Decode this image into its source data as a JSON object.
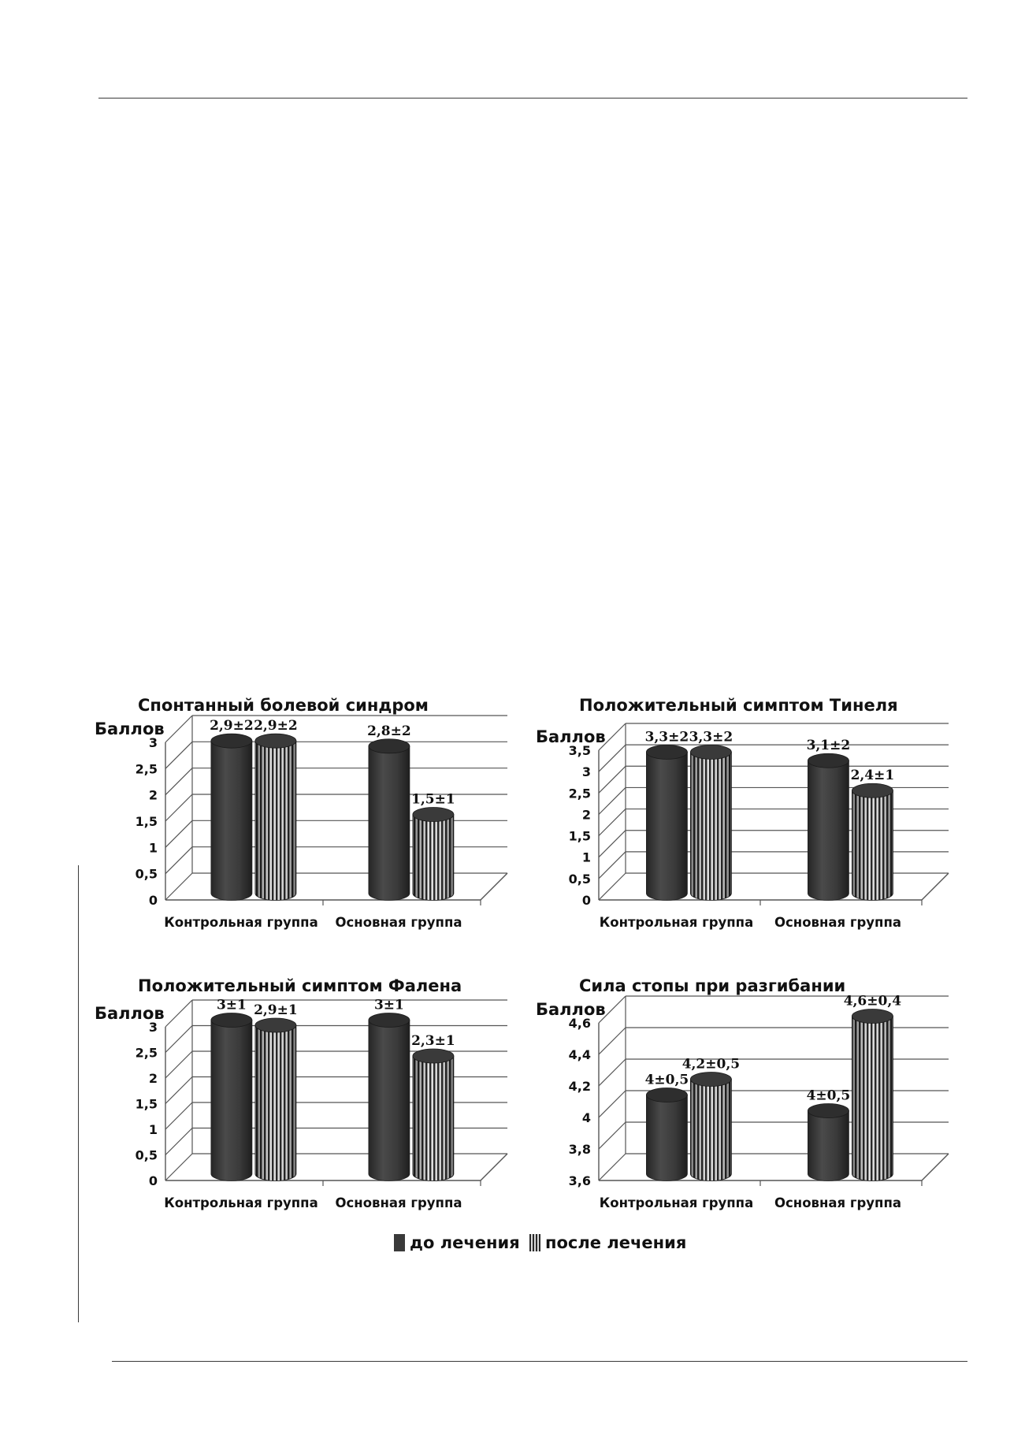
{
  "colors": {
    "before": "#3a3a3a",
    "after_dark": "#2a2a2a",
    "after_light": "#d9d9d9",
    "grid": "#555555"
  },
  "legend": {
    "before_label": "до лечения",
    "after_label": "после лечения"
  },
  "chart_data": [
    {
      "type": "bar",
      "title": "Спонтанный болевой синдром",
      "ylabel": "Баллов",
      "ylim": [
        0,
        3
      ],
      "yticks": [
        "0",
        "0,5",
        "1",
        "1,5",
        "2",
        "2,5",
        "3"
      ],
      "categories": [
        "Контрольная группа",
        "Основная группа"
      ],
      "series": [
        {
          "name": "до лечения",
          "values": [
            2.9,
            2.8
          ],
          "labels": [
            "2,9±2",
            "2,8±2"
          ]
        },
        {
          "name": "после лечения",
          "values": [
            2.9,
            1.5
          ],
          "labels": [
            "2,9±2",
            "1,5±1"
          ]
        }
      ]
    },
    {
      "type": "bar",
      "title": "Положительный симптом Тинеля",
      "ylabel": "Баллов",
      "ylim": [
        0,
        3.5
      ],
      "yticks": [
        "0",
        "0,5",
        "1",
        "1,5",
        "2",
        "2,5",
        "3",
        "3,5"
      ],
      "categories": [
        "Контрольная группа",
        "Основная группа"
      ],
      "series": [
        {
          "name": "до лечения",
          "values": [
            3.3,
            3.1
          ],
          "labels": [
            "3,3±2",
            "3,1±2"
          ]
        },
        {
          "name": "после лечения",
          "values": [
            3.3,
            2.4
          ],
          "labels": [
            "3,3±2",
            "2,4±1"
          ]
        }
      ]
    },
    {
      "type": "bar",
      "title": "Положительный симптом Фалена",
      "ylabel": "Баллов",
      "ylim": [
        0,
        3
      ],
      "yticks": [
        "0",
        "0,5",
        "1",
        "1,5",
        "2",
        "2,5",
        "3"
      ],
      "categories": [
        "Контрольная группа",
        "Основная группа"
      ],
      "series": [
        {
          "name": "до лечения",
          "values": [
            3.0,
            3.0
          ],
          "labels": [
            "3±1",
            "3±1"
          ]
        },
        {
          "name": "после лечения",
          "values": [
            2.9,
            2.3
          ],
          "labels": [
            "2,9±1",
            "2,3±1"
          ]
        }
      ]
    },
    {
      "type": "bar",
      "title": "Сила стопы при разгибании",
      "ylabel": "Баллов",
      "ylim": [
        3.6,
        4.6
      ],
      "yticks": [
        "3,6",
        "3,8",
        "4",
        "4,2",
        "4,4",
        "4,6"
      ],
      "categories": [
        "Контрольная группа",
        "Основная группа"
      ],
      "series": [
        {
          "name": "до лечения",
          "values": [
            4.1,
            4.0
          ],
          "labels": [
            "4±0,5",
            "4±0,5"
          ]
        },
        {
          "name": "после лечения",
          "values": [
            4.2,
            4.6
          ],
          "labels": [
            "4,2±0,5",
            "4,6±0,4"
          ]
        }
      ]
    }
  ]
}
